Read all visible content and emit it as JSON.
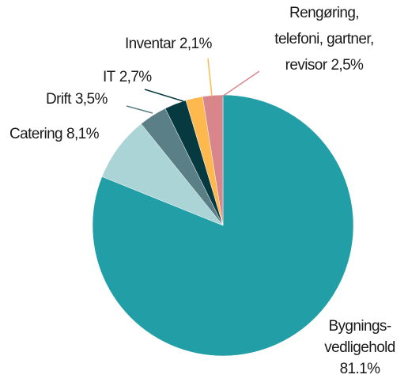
{
  "chart_data": {
    "type": "pie",
    "categories": [
      [
        "Bygnings-",
        "vedligehold"
      ],
      [
        "Catering"
      ],
      [
        "Drift"
      ],
      [
        "IT"
      ],
      [
        "Inventar"
      ],
      [
        "Rengøring,",
        "telefoni, gartner,",
        "revisor"
      ]
    ],
    "values": [
      81.1,
      8.1,
      3.5,
      2.7,
      2.1,
      2.5
    ],
    "value_labels": [
      "81.1%",
      "8,1%",
      "3,5%",
      "2,7%",
      "2,1%",
      "2,5%"
    ],
    "colors": [
      "#229ea6",
      "#aad4d5",
      "#5a7f86",
      "#073a40",
      "#fdb94e",
      "#d9858c"
    ]
  }
}
